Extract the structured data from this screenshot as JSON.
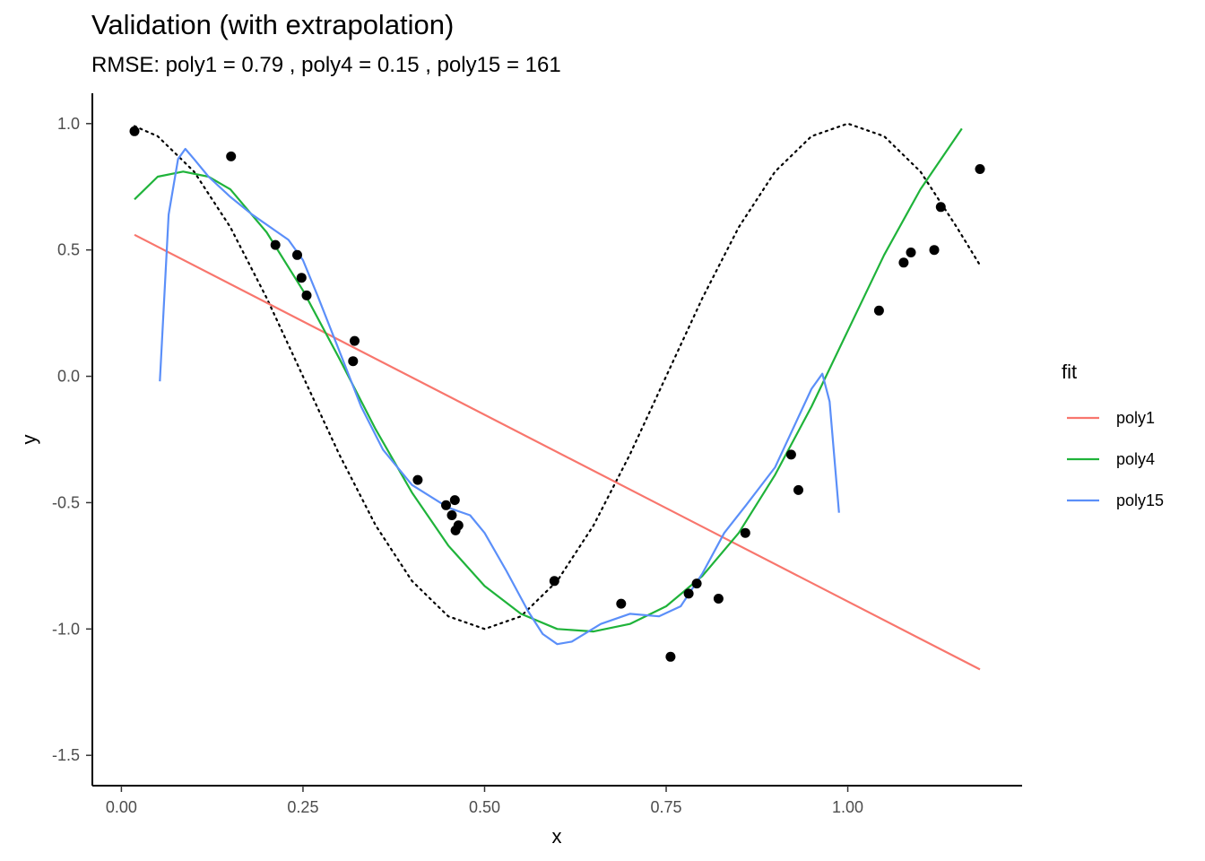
{
  "chart_data": {
    "type": "scatter",
    "title": "Validation (with extrapolation)",
    "subtitle": "RMSE: poly1 = 0.79 , poly4 = 0.15 , poly15 = 161",
    "xlabel": "x",
    "ylabel": "y",
    "xlim": [
      -0.04,
      1.24
    ],
    "ylim": [
      -1.62,
      1.12
    ],
    "xticks": [
      0.0,
      0.25,
      0.5,
      0.75,
      1.0
    ],
    "xtick_labels": [
      "0.00",
      "0.25",
      "0.50",
      "0.75",
      "1.00"
    ],
    "yticks": [
      1.0,
      0.5,
      0.0,
      -0.5,
      -1.0,
      -1.5
    ],
    "ytick_labels": [
      "1.0",
      "0.5",
      "0.0",
      "-0.5",
      "-1.0",
      "-1.5"
    ],
    "grid": false,
    "legend": {
      "title": "fit",
      "position": "right",
      "entries": [
        {
          "label": "poly1",
          "color": "#f8766d"
        },
        {
          "label": "poly4",
          "color": "#1fb33a"
        },
        {
          "label": "poly15",
          "color": "#5b8ff9"
        }
      ]
    },
    "points": {
      "x": [
        0.018,
        0.151,
        0.212,
        0.242,
        0.248,
        0.255,
        0.319,
        0.321,
        0.408,
        0.447,
        0.455,
        0.459,
        0.46,
        0.464,
        0.596,
        0.688,
        0.756,
        0.781,
        0.792,
        0.822,
        0.859,
        0.922,
        0.932,
        1.043,
        1.077,
        1.087,
        1.119,
        1.128,
        1.182
      ],
      "y": [
        0.97,
        0.87,
        0.52,
        0.48,
        0.39,
        0.32,
        0.06,
        0.14,
        -0.41,
        -0.51,
        -0.55,
        -0.49,
        -0.61,
        -0.59,
        -0.81,
        -0.9,
        -1.11,
        -0.86,
        -0.82,
        -0.88,
        -0.62,
        -0.31,
        -0.45,
        0.26,
        0.45,
        0.49,
        0.5,
        0.67,
        0.82
      ]
    },
    "true_curve": {
      "style": "dotted",
      "color": "#000000",
      "x": [
        0.018,
        0.05,
        0.1,
        0.15,
        0.2,
        0.25,
        0.3,
        0.35,
        0.4,
        0.45,
        0.5,
        0.55,
        0.6,
        0.65,
        0.7,
        0.75,
        0.8,
        0.85,
        0.9,
        0.95,
        1.0,
        1.05,
        1.1,
        1.15,
        1.182
      ],
      "y": [
        0.99,
        0.95,
        0.81,
        0.59,
        0.31,
        0.0,
        -0.31,
        -0.59,
        -0.81,
        -0.95,
        -1.0,
        -0.95,
        -0.81,
        -0.59,
        -0.31,
        0.0,
        0.31,
        0.59,
        0.81,
        0.95,
        1.0,
        0.95,
        0.81,
        0.59,
        0.44
      ]
    },
    "series": [
      {
        "name": "poly1",
        "color": "#f8766d",
        "x": [
          0.018,
          1.182
        ],
        "y": [
          0.56,
          -1.16
        ]
      },
      {
        "name": "poly4",
        "color": "#1fb33a",
        "x": [
          0.018,
          0.05,
          0.085,
          0.12,
          0.15,
          0.2,
          0.25,
          0.3,
          0.35,
          0.4,
          0.45,
          0.5,
          0.55,
          0.6,
          0.65,
          0.7,
          0.75,
          0.8,
          0.85,
          0.9,
          0.95,
          1.0,
          1.05,
          1.1,
          1.157
        ],
        "y": [
          0.7,
          0.79,
          0.81,
          0.79,
          0.74,
          0.57,
          0.34,
          0.07,
          -0.21,
          -0.46,
          -0.67,
          -0.83,
          -0.94,
          -1.0,
          -1.01,
          -0.98,
          -0.91,
          -0.79,
          -0.62,
          -0.39,
          -0.12,
          0.18,
          0.48,
          0.74,
          0.98
        ]
      },
      {
        "name": "poly15",
        "color": "#5b8ff9",
        "x": [
          0.053,
          0.065,
          0.078,
          0.088,
          0.1,
          0.12,
          0.15,
          0.18,
          0.21,
          0.23,
          0.25,
          0.27,
          0.3,
          0.33,
          0.36,
          0.4,
          0.45,
          0.48,
          0.5,
          0.53,
          0.56,
          0.58,
          0.6,
          0.62,
          0.66,
          0.7,
          0.74,
          0.77,
          0.8,
          0.83,
          0.86,
          0.9,
          0.95,
          0.965,
          0.975,
          0.988
        ],
        "y": [
          -0.02,
          0.64,
          0.86,
          0.9,
          0.86,
          0.79,
          0.71,
          0.64,
          0.58,
          0.54,
          0.46,
          0.32,
          0.1,
          -0.12,
          -0.29,
          -0.43,
          -0.52,
          -0.55,
          -0.62,
          -0.77,
          -0.93,
          -1.02,
          -1.06,
          -1.05,
          -0.98,
          -0.94,
          -0.95,
          -0.91,
          -0.78,
          -0.62,
          -0.51,
          -0.36,
          -0.05,
          0.01,
          -0.1,
          -0.54
        ]
      }
    ]
  }
}
